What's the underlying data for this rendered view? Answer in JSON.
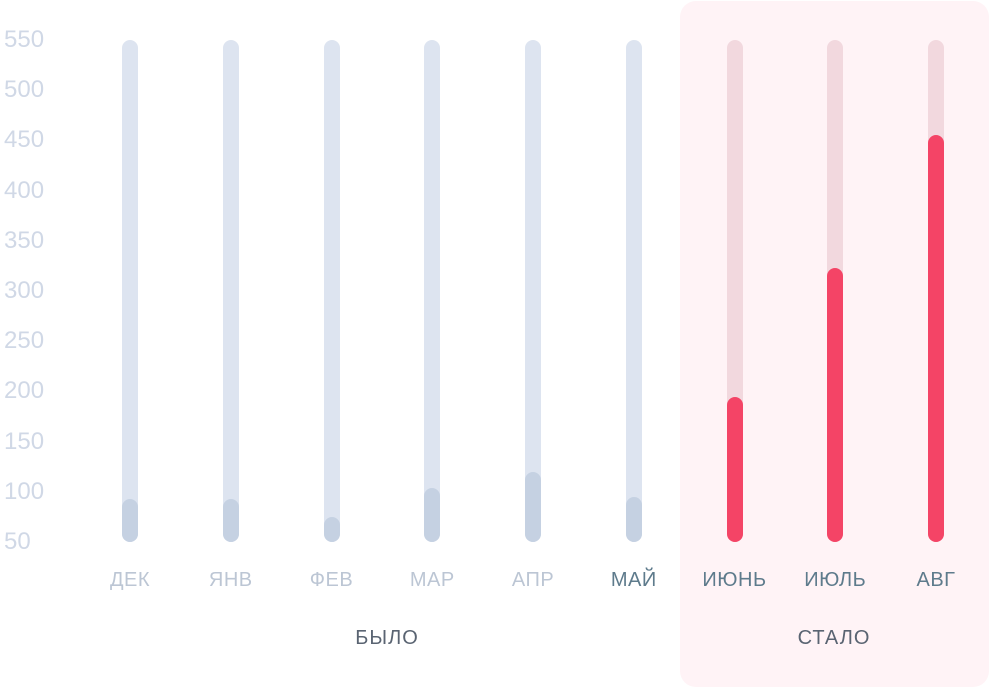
{
  "chart_data": {
    "type": "bar",
    "title": "",
    "xlabel": "",
    "ylabel": "",
    "ylim": [
      50,
      550
    ],
    "yticks": [
      550,
      500,
      450,
      400,
      350,
      300,
      250,
      200,
      150,
      100,
      50
    ],
    "categories": [
      "ДЕК",
      "ЯНВ",
      "ФЕВ",
      "МАР",
      "АПР",
      "МАЙ",
      "ИЮНЬ",
      "ИЮЛЬ",
      "АВГ"
    ],
    "values": [
      90,
      90,
      72,
      101,
      117,
      92,
      191,
      320,
      452
    ],
    "groups": [
      {
        "label": "БЫЛО",
        "categories": [
          "ДЕК",
          "ЯНВ",
          "ФЕВ",
          "МАР",
          "АПР",
          "МАЙ"
        ]
      },
      {
        "label": "СТАЛО",
        "categories": [
          "ИЮНЬ",
          "ИЮЛЬ",
          "АВГ"
        ]
      }
    ],
    "highlighted_group": "СТАЛО"
  },
  "colors": {
    "track_before": "#dde4f0",
    "fill_before": "#c5d1e2",
    "track_after": "#f2d8de",
    "fill_after": "#f44466",
    "label_muted": "#bcc6d4",
    "label_strong": "#5e7b8c",
    "group_label": "#5a6472",
    "panel": "#fff3f6"
  }
}
